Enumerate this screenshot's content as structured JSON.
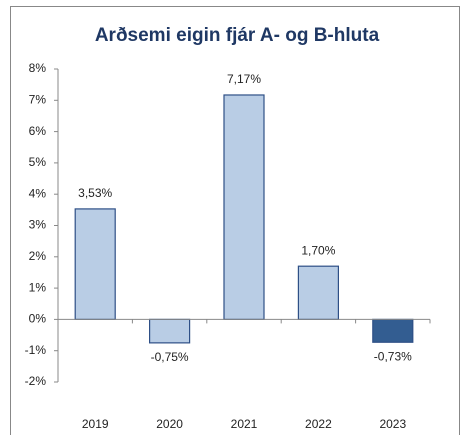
{
  "chart_data": {
    "type": "bar",
    "title": "Arðsemi eigin fjár A- og B-hluta",
    "categories": [
      "2019",
      "2020",
      "2021",
      "2022",
      "2023"
    ],
    "values": [
      3.53,
      -0.75,
      7.17,
      1.7,
      -0.73
    ],
    "value_labels": [
      "3,53%",
      "-0,75%",
      "7,17%",
      "1,70%",
      "-0,73%"
    ],
    "colors": [
      "#b9cde5",
      "#b9cde5",
      "#b9cde5",
      "#b9cde5",
      "#335d91"
    ],
    "ylim": [
      -2,
      8
    ],
    "yticks": [
      {
        "value": -2,
        "label": "-2%"
      },
      {
        "value": -1,
        "label": "-1%"
      },
      {
        "value": 0,
        "label": "0%"
      },
      {
        "value": 1,
        "label": "1%"
      },
      {
        "value": 2,
        "label": "2%"
      },
      {
        "value": 3,
        "label": "3%"
      },
      {
        "value": 4,
        "label": "4%"
      },
      {
        "value": 5,
        "label": "5%"
      },
      {
        "value": 6,
        "label": "6%"
      },
      {
        "value": 7,
        "label": "7%"
      },
      {
        "value": 8,
        "label": "8%"
      }
    ],
    "grid": false
  }
}
